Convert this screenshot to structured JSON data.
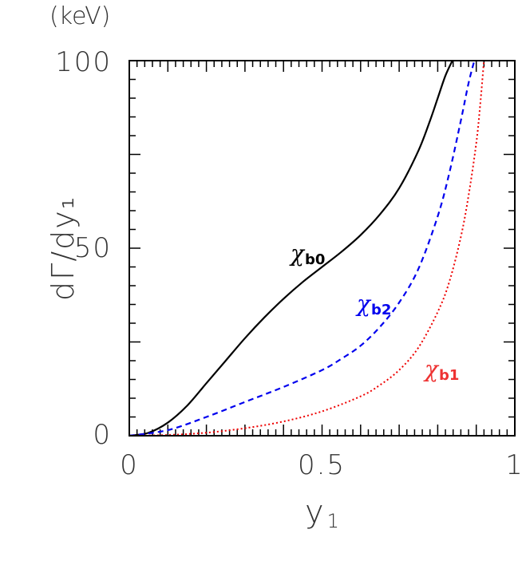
{
  "chart_data": {
    "type": "line",
    "y_unit": "(keV)",
    "ylabel": "dΓ/dy₁",
    "xlabel": "y",
    "xlabel_sub": "1",
    "xlim": [
      0,
      1
    ],
    "ylim": [
      0,
      100
    ],
    "x_ticks": [
      "0",
      "0.5",
      "1"
    ],
    "y_ticks": [
      "0",
      "50",
      "100"
    ],
    "series": [
      {
        "name": "χb0",
        "name_main": "χ",
        "name_sub": "b0",
        "color": "#000000",
        "dash": "solid",
        "x": [
          0.0,
          0.05,
          0.1,
          0.15,
          0.2,
          0.25,
          0.3,
          0.35,
          0.4,
          0.45,
          0.5,
          0.55,
          0.6,
          0.65,
          0.7,
          0.75,
          0.78,
          0.8,
          0.82,
          0.838
        ],
        "y": [
          0.0,
          0.8,
          3.5,
          8.0,
          14.0,
          20.0,
          26.0,
          31.5,
          36.5,
          41.0,
          45.0,
          49.0,
          53.5,
          59.0,
          66.0,
          76.0,
          84.0,
          90.0,
          96.0,
          100.0
        ]
      },
      {
        "name": "χb2",
        "name_main": "χ",
        "name_sub": "b2",
        "color": "#0000ee",
        "dash": "dashed",
        "x": [
          0.0,
          0.1,
          0.2,
          0.3,
          0.4,
          0.5,
          0.55,
          0.6,
          0.65,
          0.7,
          0.75,
          0.8,
          0.83,
          0.86,
          0.88,
          0.895
        ],
        "y": [
          0.0,
          1.5,
          5.0,
          9.0,
          13.0,
          17.5,
          20.5,
          24.0,
          29.0,
          35.5,
          44.5,
          58.5,
          70.0,
          84.0,
          94.0,
          100.0
        ]
      },
      {
        "name": "χb1",
        "name_main": "χ",
        "name_sub": "b1",
        "color": "#ee0000",
        "dash": "dotted",
        "x": [
          0.0,
          0.1,
          0.2,
          0.3,
          0.4,
          0.5,
          0.6,
          0.65,
          0.7,
          0.75,
          0.8,
          0.83,
          0.86,
          0.88,
          0.9,
          0.91,
          0.92
        ],
        "y": [
          0.0,
          0.2,
          0.8,
          2.0,
          3.8,
          6.5,
          10.5,
          13.5,
          17.5,
          23.5,
          33.0,
          41.0,
          53.0,
          64.0,
          78.0,
          88.0,
          100.0
        ]
      }
    ]
  }
}
